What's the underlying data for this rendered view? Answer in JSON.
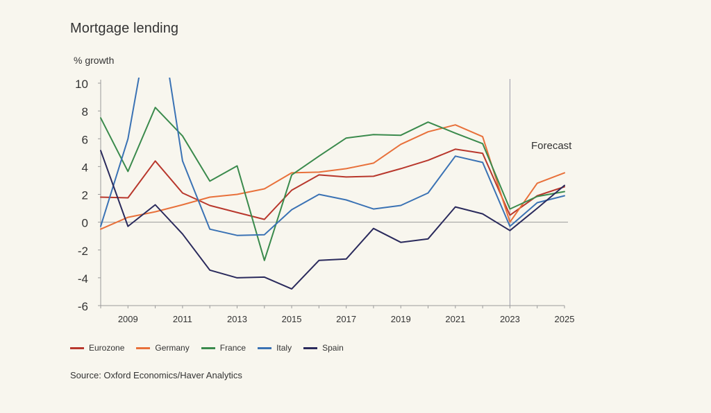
{
  "chart_data": {
    "type": "line",
    "title": "Mortgage lending",
    "ylabel": "% growth",
    "ylim": [
      -6,
      10
    ],
    "yticks": [
      10,
      8,
      6,
      4,
      2,
      0,
      -2,
      -4,
      -6
    ],
    "xlim": [
      2008,
      2025
    ],
    "xticks": [
      2009,
      2011,
      2013,
      2015,
      2017,
      2019,
      2021,
      2023,
      2025
    ],
    "x": [
      2008,
      2009,
      2010,
      2011,
      2012,
      2013,
      2014,
      2015,
      2016,
      2017,
      2018,
      2019,
      2020,
      2021,
      2022,
      2023,
      2024,
      2025
    ],
    "forecast_start": 2023,
    "forecast_label": "Forecast",
    "series": [
      {
        "name": "Eurozone",
        "color": "#b8372c",
        "values": [
          1.8,
          1.75,
          4.4,
          2.1,
          1.2,
          0.7,
          0.2,
          2.3,
          3.4,
          3.25,
          3.3,
          3.85,
          4.45,
          5.25,
          4.95,
          0.5,
          1.9,
          2.55
        ]
      },
      {
        "name": "Germany",
        "color": "#e8703a",
        "values": [
          -0.5,
          0.35,
          0.75,
          1.25,
          1.8,
          2.0,
          2.4,
          3.55,
          3.6,
          3.85,
          4.25,
          5.6,
          6.5,
          7.0,
          6.15,
          0.0,
          2.8,
          3.55
        ]
      },
      {
        "name": "France",
        "color": "#3a8a4c",
        "values": [
          7.5,
          3.65,
          8.25,
          6.2,
          2.95,
          4.05,
          -2.75,
          3.4,
          4.75,
          6.05,
          6.3,
          6.25,
          7.2,
          6.4,
          5.65,
          0.95,
          1.85,
          2.2
        ]
      },
      {
        "name": "Italy",
        "color": "#3a72b4",
        "values": [
          -0.3,
          6.0,
          17.0,
          4.4,
          -0.5,
          -0.95,
          -0.9,
          0.9,
          2.0,
          1.6,
          0.95,
          1.2,
          2.1,
          4.75,
          4.3,
          -0.3,
          1.4,
          1.9
        ]
      },
      {
        "name": "Spain",
        "color": "#2a2a5c",
        "values": [
          5.15,
          -0.3,
          1.25,
          -0.85,
          -3.45,
          -4.0,
          -3.95,
          -4.8,
          -2.75,
          -2.65,
          -0.45,
          -1.45,
          -1.2,
          1.1,
          0.6,
          -0.6,
          1.0,
          2.65
        ]
      }
    ]
  },
  "source": "Source: Oxford Economics/Haver Analytics"
}
